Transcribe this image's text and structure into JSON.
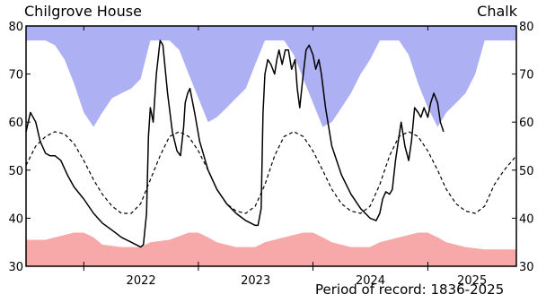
{
  "header": {
    "site": "Chilgrove House",
    "aquifer": "Chalk"
  },
  "footer": {
    "period_label": "Period of record: 1836-2025"
  },
  "colors": {
    "max_band": "#aeb0f4",
    "min_band": "#f7a9a9",
    "level_line": "#000000",
    "mean_line": "#000000"
  },
  "chart_data": {
    "type": "line",
    "title": "",
    "xlabel": "",
    "ylabel": "",
    "x_range": [
      "2021-07-01",
      "2025-10-10"
    ],
    "ylim": [
      30,
      80
    ],
    "y_ticks": [
      30,
      40,
      50,
      60,
      70,
      80
    ],
    "x_ticks": [
      "2022",
      "2023",
      "2024",
      "2025"
    ],
    "grid": false,
    "legend": "none",
    "series": [
      {
        "role": "observed",
        "style": "solid",
        "points": [
          [
            "2021-07-01",
            58
          ],
          [
            "2021-07-15",
            62
          ],
          [
            "2021-08-01",
            60
          ],
          [
            "2021-08-15",
            56
          ],
          [
            "2021-09-01",
            53.5
          ],
          [
            "2021-09-15",
            53
          ],
          [
            "2021-10-01",
            53
          ],
          [
            "2021-10-20",
            52
          ],
          [
            "2021-11-10",
            49
          ],
          [
            "2021-12-01",
            46.5
          ],
          [
            "2022-01-01",
            44
          ],
          [
            "2022-02-01",
            41
          ],
          [
            "2022-03-01",
            39
          ],
          [
            "2022-04-01",
            37.5
          ],
          [
            "2022-05-01",
            36
          ],
          [
            "2022-06-01",
            35
          ],
          [
            "2022-07-01",
            34
          ],
          [
            "2022-07-10",
            34.5
          ],
          [
            "2022-07-20",
            41
          ],
          [
            "2022-07-26",
            57
          ],
          [
            "2022-08-01",
            63
          ],
          [
            "2022-08-10",
            60
          ],
          [
            "2022-08-20",
            70
          ],
          [
            "2022-09-01",
            77
          ],
          [
            "2022-09-10",
            76
          ],
          [
            "2022-09-25",
            66
          ],
          [
            "2022-10-10",
            58
          ],
          [
            "2022-10-25",
            54
          ],
          [
            "2022-11-05",
            53
          ],
          [
            "2022-11-15",
            59
          ],
          [
            "2022-11-20",
            64
          ],
          [
            "2022-11-28",
            66
          ],
          [
            "2022-12-05",
            67
          ],
          [
            "2022-12-20",
            62
          ],
          [
            "2023-01-05",
            56
          ],
          [
            "2023-02-01",
            50
          ],
          [
            "2023-03-01",
            46
          ],
          [
            "2023-04-01",
            43
          ],
          [
            "2023-05-01",
            41
          ],
          [
            "2023-06-01",
            39.5
          ],
          [
            "2023-07-01",
            38.5
          ],
          [
            "2023-07-10",
            38.5
          ],
          [
            "2023-07-20",
            42
          ],
          [
            "2023-07-26",
            62
          ],
          [
            "2023-08-01",
            70
          ],
          [
            "2023-08-10",
            73
          ],
          [
            "2023-08-20",
            72
          ],
          [
            "2023-09-01",
            70
          ],
          [
            "2023-09-08",
            73
          ],
          [
            "2023-09-15",
            75
          ],
          [
            "2023-09-25",
            72
          ],
          [
            "2023-10-05",
            75
          ],
          [
            "2023-10-15",
            75
          ],
          [
            "2023-10-25",
            71
          ],
          [
            "2023-11-05",
            73
          ],
          [
            "2023-11-12",
            67
          ],
          [
            "2023-11-20",
            63
          ],
          [
            "2023-12-01",
            70
          ],
          [
            "2023-12-10",
            75
          ],
          [
            "2023-12-20",
            76
          ],
          [
            "2024-01-01",
            74
          ],
          [
            "2024-01-10",
            71
          ],
          [
            "2024-01-20",
            73
          ],
          [
            "2024-01-28",
            70
          ],
          [
            "2024-02-10",
            63
          ],
          [
            "2024-03-01",
            55
          ],
          [
            "2024-04-01",
            49
          ],
          [
            "2024-05-01",
            45
          ],
          [
            "2024-06-01",
            42
          ],
          [
            "2024-07-01",
            40
          ],
          [
            "2024-07-20",
            39.5
          ],
          [
            "2024-08-01",
            41
          ],
          [
            "2024-08-10",
            44
          ],
          [
            "2024-08-20",
            45.5
          ],
          [
            "2024-09-01",
            45
          ],
          [
            "2024-09-10",
            46
          ],
          [
            "2024-09-20",
            52
          ],
          [
            "2024-10-01",
            57
          ],
          [
            "2024-10-08",
            60
          ],
          [
            "2024-10-20",
            55
          ],
          [
            "2024-11-01",
            52
          ],
          [
            "2024-11-10",
            56
          ],
          [
            "2024-11-20",
            63
          ],
          [
            "2024-12-01",
            62
          ],
          [
            "2024-12-10",
            61
          ],
          [
            "2024-12-20",
            63
          ],
          [
            "2025-01-01",
            61
          ],
          [
            "2025-01-10",
            64
          ],
          [
            "2025-01-20",
            66
          ],
          [
            "2025-02-01",
            64
          ],
          [
            "2025-02-10",
            60
          ],
          [
            "2025-02-20",
            58
          ]
        ]
      },
      {
        "role": "long-term average",
        "style": "dashed",
        "points": [
          [
            "2021-07-01",
            51
          ],
          [
            "2021-08-01",
            55
          ],
          [
            "2021-09-01",
            57
          ],
          [
            "2021-10-01",
            58
          ],
          [
            "2021-11-01",
            57.5
          ],
          [
            "2021-12-01",
            55.5
          ],
          [
            "2022-01-01",
            52
          ],
          [
            "2022-02-01",
            48
          ],
          [
            "2022-03-01",
            45
          ],
          [
            "2022-04-01",
            42.5
          ],
          [
            "2022-05-01",
            41
          ],
          [
            "2022-06-01",
            41
          ],
          [
            "2022-07-01",
            43
          ],
          [
            "2022-08-01",
            48
          ],
          [
            "2022-09-01",
            53
          ],
          [
            "2022-10-01",
            57
          ],
          [
            "2022-11-01",
            58
          ],
          [
            "2022-12-01",
            57
          ],
          [
            "2023-01-01",
            54
          ],
          [
            "2023-02-01",
            50
          ],
          [
            "2023-03-01",
            46
          ],
          [
            "2023-04-01",
            43
          ],
          [
            "2023-05-01",
            41.5
          ],
          [
            "2023-06-01",
            41
          ],
          [
            "2023-07-01",
            42.5
          ],
          [
            "2023-08-01",
            47
          ],
          [
            "2023-09-01",
            53
          ],
          [
            "2023-10-01",
            57
          ],
          [
            "2023-11-01",
            58
          ],
          [
            "2023-12-01",
            57
          ],
          [
            "2024-01-01",
            54
          ],
          [
            "2024-02-01",
            50
          ],
          [
            "2024-03-01",
            46
          ],
          [
            "2024-04-01",
            43
          ],
          [
            "2024-05-01",
            41.5
          ],
          [
            "2024-06-01",
            41
          ],
          [
            "2024-07-01",
            42.5
          ],
          [
            "2024-08-01",
            47
          ],
          [
            "2024-09-01",
            53
          ],
          [
            "2024-10-01",
            57
          ],
          [
            "2024-11-01",
            58
          ],
          [
            "2024-12-01",
            57
          ],
          [
            "2025-01-01",
            54
          ],
          [
            "2025-02-01",
            50
          ],
          [
            "2025-03-01",
            46
          ],
          [
            "2025-04-01",
            43
          ],
          [
            "2025-05-01",
            41.5
          ],
          [
            "2025-06-01",
            41
          ],
          [
            "2025-07-01",
            42.5
          ],
          [
            "2025-08-01",
            47
          ],
          [
            "2025-09-01",
            50
          ],
          [
            "2025-10-10",
            53
          ]
        ]
      }
    ],
    "bands": [
      {
        "role": "maximum",
        "color": "#aeb0f4",
        "from_top": true,
        "points": [
          [
            "2021-07-01",
            77
          ],
          [
            "2021-09-01",
            77
          ],
          [
            "2021-10-01",
            76
          ],
          [
            "2021-11-01",
            73
          ],
          [
            "2021-12-01",
            68
          ],
          [
            "2022-01-01",
            62
          ],
          [
            "2022-02-01",
            59
          ],
          [
            "2022-03-01",
            62
          ],
          [
            "2022-04-01",
            65
          ],
          [
            "2022-05-01",
            66
          ],
          [
            "2022-06-01",
            67
          ],
          [
            "2022-07-01",
            69
          ],
          [
            "2022-08-01",
            77
          ],
          [
            "2022-10-01",
            77
          ],
          [
            "2022-11-01",
            75
          ],
          [
            "2022-12-01",
            70
          ],
          [
            "2023-01-01",
            65
          ],
          [
            "2023-02-01",
            60
          ],
          [
            "2023-03-01",
            61
          ],
          [
            "2023-04-01",
            63
          ],
          [
            "2023-05-01",
            65
          ],
          [
            "2023-06-01",
            67
          ],
          [
            "2023-07-01",
            72
          ],
          [
            "2023-08-01",
            77
          ],
          [
            "2023-10-01",
            77
          ],
          [
            "2023-11-01",
            74
          ],
          [
            "2023-12-01",
            69
          ],
          [
            "2024-01-01",
            64
          ],
          [
            "2024-02-01",
            59
          ],
          [
            "2024-03-01",
            60
          ],
          [
            "2024-04-01",
            63
          ],
          [
            "2024-05-01",
            66
          ],
          [
            "2024-06-01",
            70
          ],
          [
            "2024-07-01",
            73
          ],
          [
            "2024-08-01",
            77
          ],
          [
            "2024-10-01",
            77
          ],
          [
            "2024-11-01",
            74
          ],
          [
            "2024-12-01",
            68
          ],
          [
            "2025-01-01",
            63
          ],
          [
            "2025-02-01",
            59
          ],
          [
            "2025-03-01",
            62
          ],
          [
            "2025-04-01",
            64
          ],
          [
            "2025-05-01",
            66
          ],
          [
            "2025-06-01",
            70
          ],
          [
            "2025-07-01",
            77
          ],
          [
            "2025-10-10",
            77
          ]
        ]
      },
      {
        "role": "minimum",
        "color": "#f7a9a9",
        "from_top": false,
        "points": [
          [
            "2021-07-01",
            35.5
          ],
          [
            "2021-09-01",
            35.5
          ],
          [
            "2021-10-01",
            36
          ],
          [
            "2021-12-01",
            37
          ],
          [
            "2022-01-01",
            37
          ],
          [
            "2022-02-01",
            36
          ],
          [
            "2022-03-01",
            34.5
          ],
          [
            "2022-05-01",
            34
          ],
          [
            "2022-07-01",
            34
          ],
          [
            "2022-08-01",
            35
          ],
          [
            "2022-10-01",
            35.5
          ],
          [
            "2022-12-01",
            37
          ],
          [
            "2023-01-01",
            37
          ],
          [
            "2023-02-01",
            36
          ],
          [
            "2023-03-01",
            35
          ],
          [
            "2023-05-01",
            34
          ],
          [
            "2023-07-01",
            34
          ],
          [
            "2023-08-01",
            35
          ],
          [
            "2023-10-01",
            36
          ],
          [
            "2023-12-01",
            37
          ],
          [
            "2024-01-01",
            37
          ],
          [
            "2024-02-01",
            36
          ],
          [
            "2024-03-01",
            35
          ],
          [
            "2024-05-01",
            34
          ],
          [
            "2024-07-01",
            34
          ],
          [
            "2024-08-01",
            35
          ],
          [
            "2024-10-01",
            36
          ],
          [
            "2024-12-01",
            37
          ],
          [
            "2025-01-01",
            37
          ],
          [
            "2025-02-01",
            36
          ],
          [
            "2025-03-01",
            35
          ],
          [
            "2025-05-01",
            34
          ],
          [
            "2025-07-01",
            33.5
          ],
          [
            "2025-10-10",
            33.5
          ]
        ]
      }
    ]
  }
}
